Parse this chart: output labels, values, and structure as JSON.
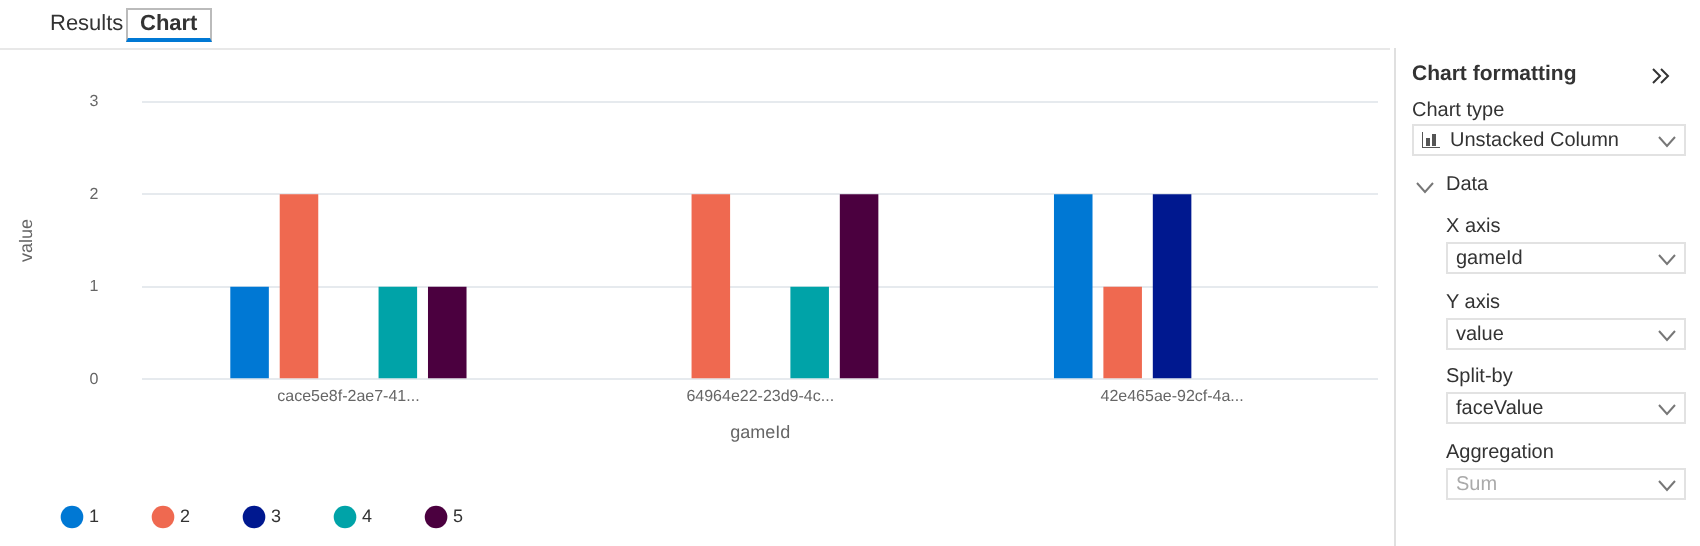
{
  "chart_data": {
    "type": "bar",
    "xlabel": "gameId",
    "ylabel": "value",
    "categories": [
      "cace5e8f-2ae7-41...",
      "64964e22-23d9-4c...",
      "42e465ae-92cf-4a..."
    ],
    "series": [
      {
        "name": "1",
        "color": "#0078d4",
        "values": [
          1,
          null,
          2
        ]
      },
      {
        "name": "2",
        "color": "#ef6950",
        "values": [
          2,
          2,
          1
        ]
      },
      {
        "name": "3",
        "color": "#00188f",
        "values": [
          null,
          null,
          2
        ]
      },
      {
        "name": "4",
        "color": "#00a3a8",
        "values": [
          1,
          1,
          null
        ]
      },
      {
        "name": "5",
        "color": "#4b003f",
        "values": [
          1,
          2,
          null
        ]
      }
    ],
    "ylim": [
      0,
      3
    ],
    "yticks": [
      0,
      1,
      2,
      3
    ],
    "grid": "y",
    "legend": "bottom left",
    "annotations": [
      "Results",
      "Chart",
      "Chart formatting",
      "Chart type",
      "Unstacked Column",
      "Data",
      "X axis",
      "gameId",
      "Y axis",
      "value",
      "Split-by",
      "faceValue",
      "Aggregation",
      "Sum"
    ]
  }
}
